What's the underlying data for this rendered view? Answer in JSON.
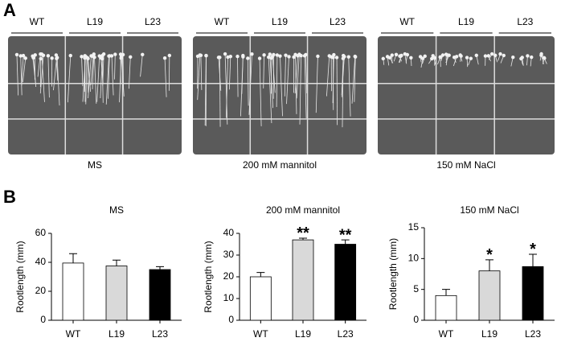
{
  "panel_a": {
    "label": "A",
    "plates": [
      {
        "caption": "MS",
        "genotypes": [
          "WT",
          "L19",
          "L23"
        ]
      },
      {
        "caption": "200 mM mannitol",
        "genotypes": [
          "WT",
          "L19",
          "L23"
        ]
      },
      {
        "caption": "150 mM NaCl",
        "genotypes": [
          "WT",
          "L19",
          "L23"
        ]
      }
    ]
  },
  "panel_b": {
    "label": "B"
  },
  "chart_data": [
    {
      "type": "bar",
      "title": "MS",
      "ylabel": "Rootlength (mm)",
      "categories": [
        "WT",
        "L19",
        "L23"
      ],
      "values": [
        39.5,
        37.5,
        35
      ],
      "errors": [
        6.5,
        4,
        2
      ],
      "colors": [
        "#ffffff",
        "#d9d9d9",
        "#000000"
      ],
      "ylim": [
        0,
        60
      ],
      "yticks": [
        0,
        20,
        40,
        60
      ]
    },
    {
      "type": "bar",
      "title": "200 mM mannitol",
      "ylabel": "Rootlength (mm)",
      "categories": [
        "WT",
        "L19",
        "L23"
      ],
      "values": [
        20,
        37,
        35
      ],
      "errors": [
        2,
        0.8,
        2
      ],
      "colors": [
        "#ffffff",
        "#d9d9d9",
        "#000000"
      ],
      "annotations": [
        null,
        "**",
        "**"
      ],
      "ylim": [
        0,
        40
      ],
      "yticks": [
        0,
        10,
        20,
        30,
        40
      ]
    },
    {
      "type": "bar",
      "title": "150 mM NaCl",
      "ylabel": "Rootlength (mm)",
      "categories": [
        "WT",
        "L19",
        "L23"
      ],
      "values": [
        4,
        8,
        8.7
      ],
      "errors": [
        1,
        1.8,
        2
      ],
      "colors": [
        "#ffffff",
        "#d9d9d9",
        "#000000"
      ],
      "annotations": [
        null,
        "*",
        "*"
      ],
      "ylim": [
        0,
        15
      ],
      "yticks": [
        0,
        5,
        10,
        15
      ]
    }
  ]
}
